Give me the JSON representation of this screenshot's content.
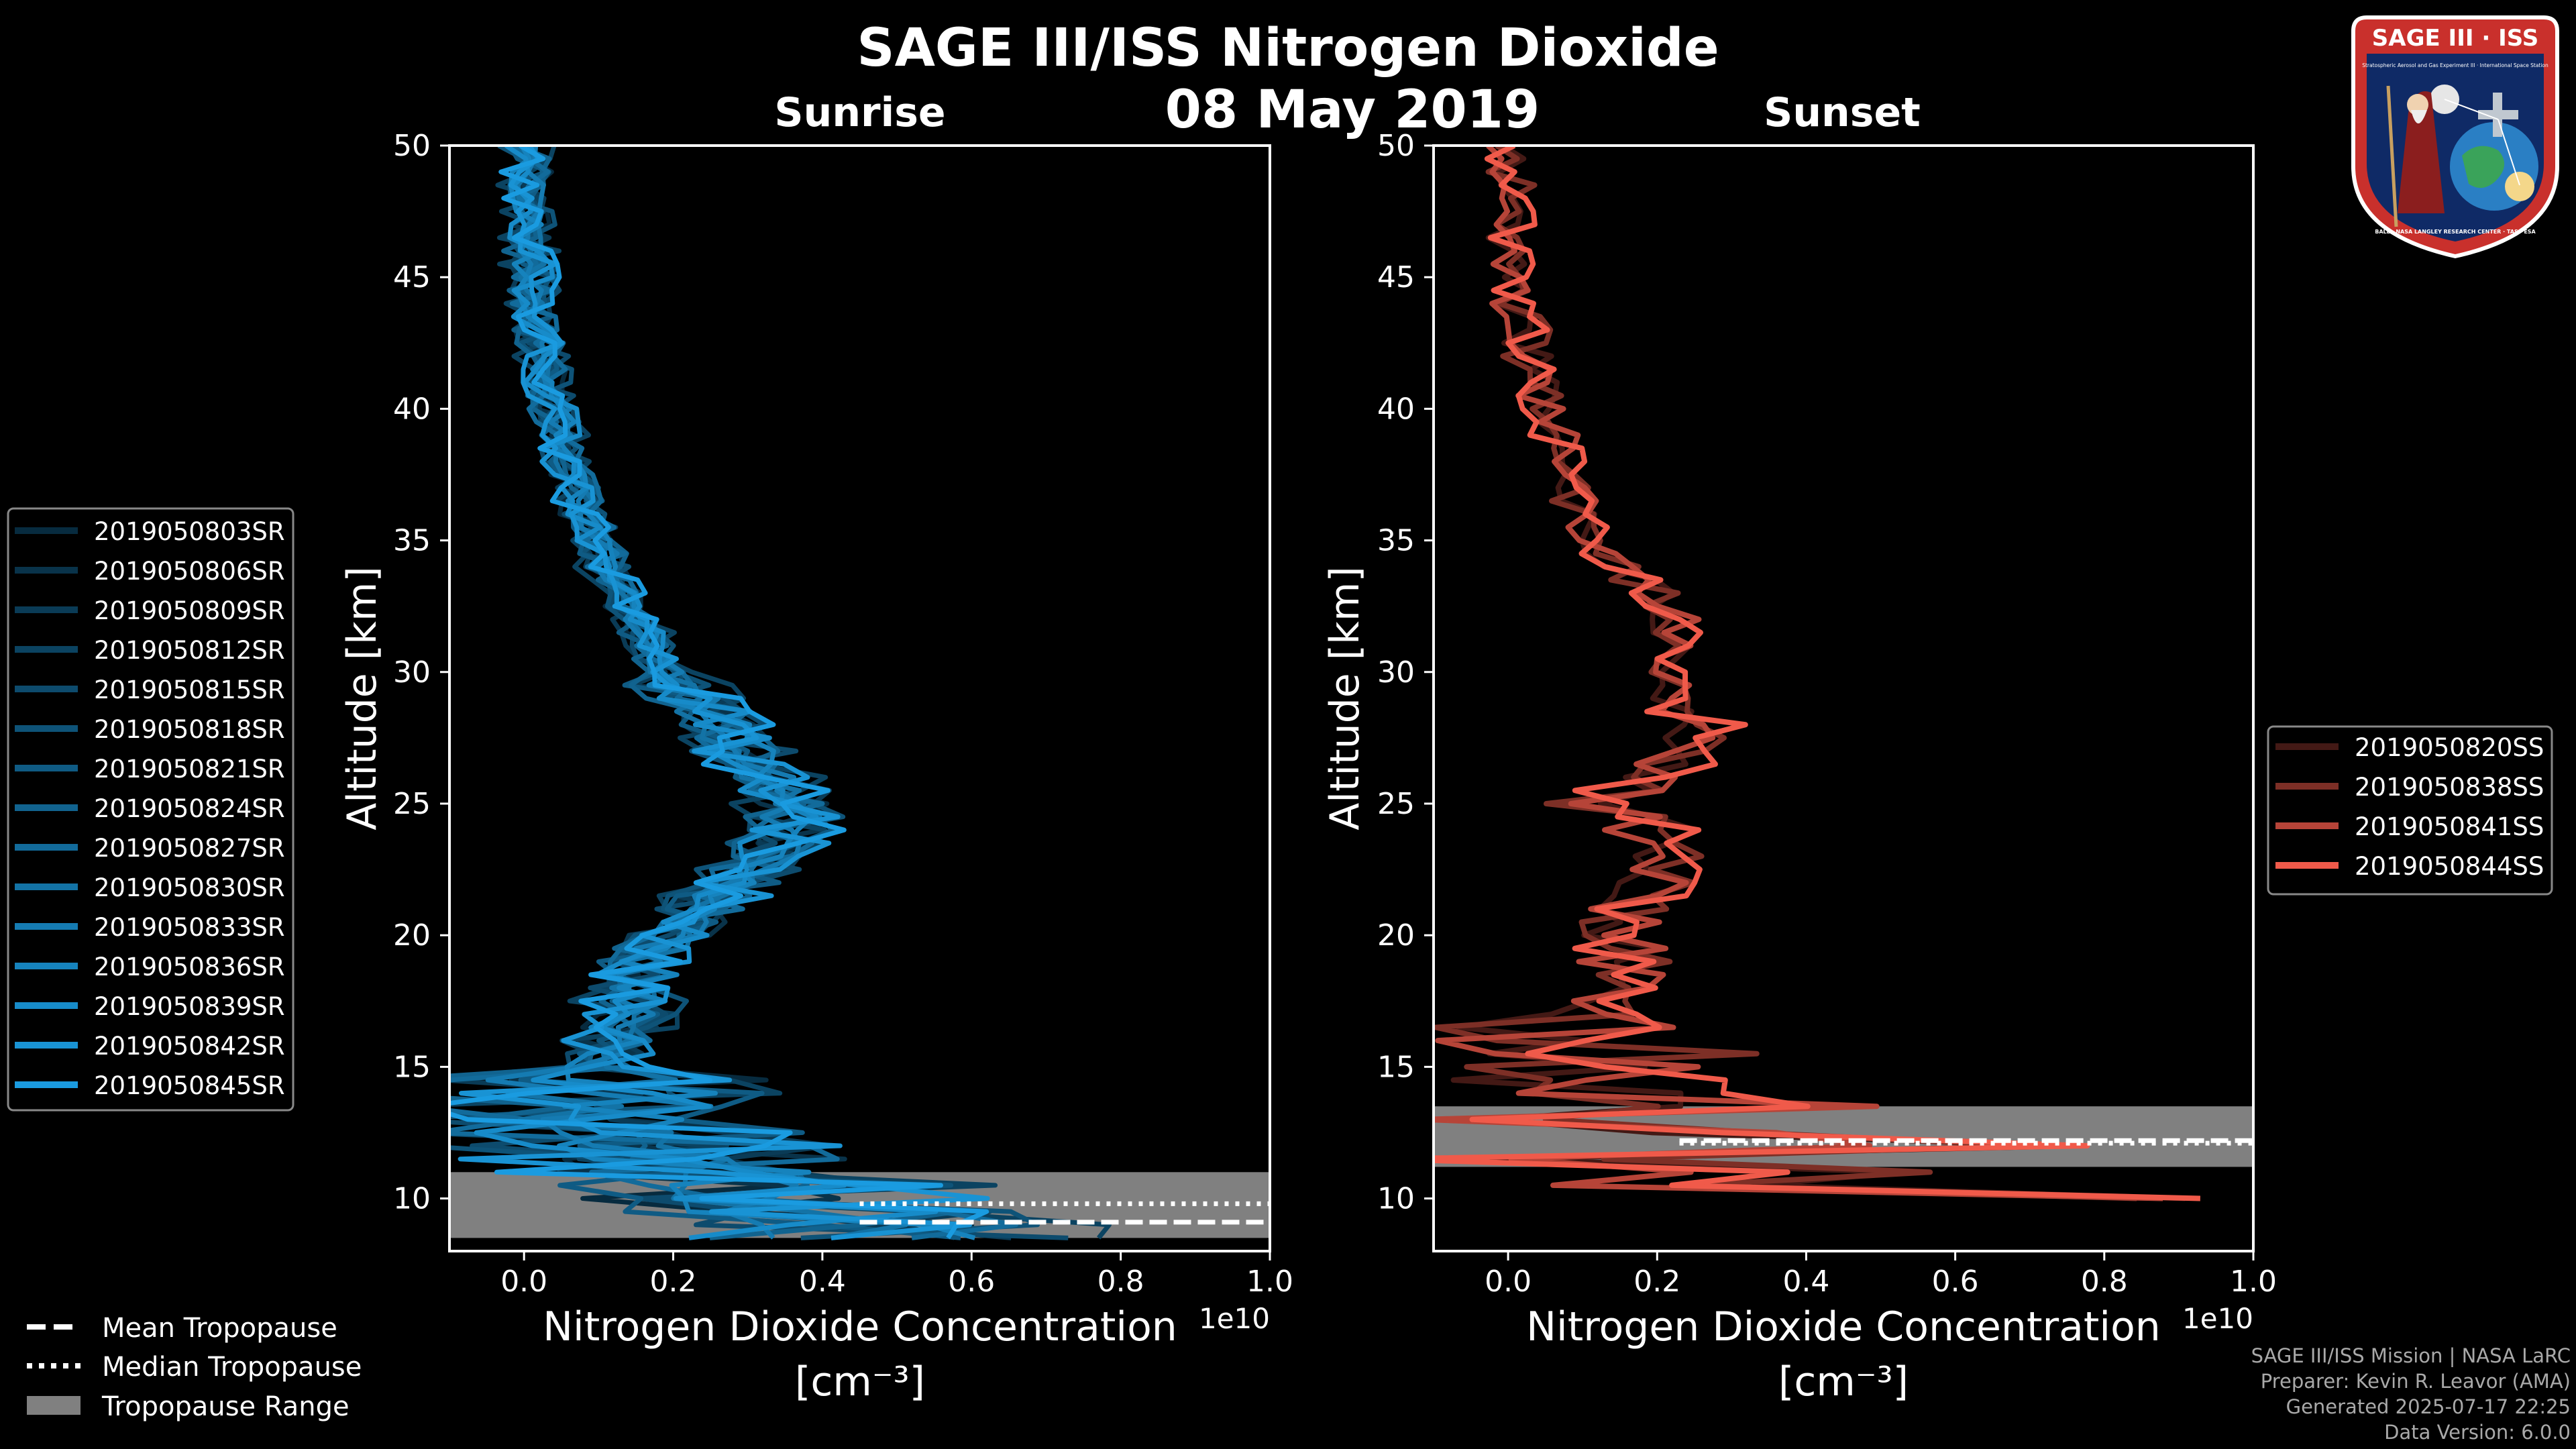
{
  "title": "SAGE III/ISS Nitrogen Dioxide",
  "date": "08 May 2019",
  "logo_text": {
    "name": "SAGE III · ISS",
    "ring": "BALL · NASA LANGLEY RESEARCH CENTER · TAS · ESA",
    "sub": "Stratospheric Aerosol and Gas Experiment III · International Space Station"
  },
  "credits": {
    "line1": "SAGE III/ISS Mission | NASA LaRC",
    "line2": "Preparer: Kevin R. Leavor (AMA)",
    "line3": "Generated 2025-07-17 22:25",
    "line4": "Data Version: 6.0.0"
  },
  "tropo_legend": {
    "mean": "Mean Tropopause",
    "median": "Median Tropopause",
    "range": "Tropopause Range"
  },
  "colors": {
    "background": "#000000",
    "sunrise_base": "#1a9be0",
    "sunset_base": "#f05a4a",
    "tropo_band": "#808080"
  },
  "chart_data": [
    {
      "type": "line",
      "panel": "sunrise",
      "title": "Sunrise",
      "xlabel": "Nitrogen Dioxide Concentration",
      "xlabel_units": "[cm$^{-3}$]",
      "xlabel_units_display": "[cm⁻³]",
      "ylabel": "Altitude [km]",
      "xlim": [
        -0.1,
        1.0
      ],
      "ylim": [
        8,
        50
      ],
      "x_scale_label": "1e10",
      "xticks": [
        "0.0",
        "0.2",
        "0.4",
        "0.6",
        "0.8",
        "1.0"
      ],
      "yticks": [
        "10",
        "15",
        "20",
        "25",
        "30",
        "35",
        "40",
        "45",
        "50"
      ],
      "legend": [
        "2019050803SR",
        "2019050806SR",
        "2019050809SR",
        "2019050812SR",
        "2019050815SR",
        "2019050818SR",
        "2019050821SR",
        "2019050824SR",
        "2019050827SR",
        "2019050830SR",
        "2019050833SR",
        "2019050836SR",
        "2019050839SR",
        "2019050842SR",
        "2019050845SR"
      ],
      "mean_profile": {
        "altitude_km": [
          9,
          10,
          11,
          12,
          13,
          14,
          15,
          16,
          17,
          18,
          19,
          20,
          21,
          22,
          23,
          24,
          25,
          26,
          27,
          28,
          29,
          30,
          31,
          32,
          33,
          34,
          35,
          36,
          37,
          38,
          39,
          40,
          41,
          42,
          43,
          44,
          45,
          46,
          47,
          48,
          49,
          50
        ],
        "no2_1e10": [
          0.45,
          0.35,
          0.25,
          0.15,
          0.1,
          0.08,
          0.1,
          0.12,
          0.14,
          0.15,
          0.17,
          0.2,
          0.24,
          0.28,
          0.33,
          0.36,
          0.36,
          0.33,
          0.3,
          0.26,
          0.22,
          0.19,
          0.17,
          0.15,
          0.13,
          0.11,
          0.1,
          0.08,
          0.07,
          0.06,
          0.05,
          0.04,
          0.03,
          0.025,
          0.02,
          0.015,
          0.01,
          0.008,
          0.006,
          0.005,
          0.004,
          0.003
        ]
      },
      "tropopause": {
        "mean_km": 9.1,
        "median_km": 9.8,
        "range_km": [
          8.5,
          11.0
        ],
        "line_x_start": 0.45
      }
    },
    {
      "type": "line",
      "panel": "sunset",
      "title": "Sunset",
      "xlabel": "Nitrogen Dioxide Concentration",
      "xlabel_units": "[cm$^{-3}$]",
      "xlabel_units_display": "[cm⁻³]",
      "ylabel": "Altitude [km]",
      "xlim": [
        -0.1,
        1.0
      ],
      "ylim": [
        8,
        50
      ],
      "x_scale_label": "1e10",
      "xticks": [
        "0.0",
        "0.2",
        "0.4",
        "0.6",
        "0.8",
        "1.0"
      ],
      "yticks": [
        "10",
        "15",
        "20",
        "25",
        "30",
        "35",
        "40",
        "45",
        "50"
      ],
      "legend": [
        "2019050820SS",
        "2019050838SS",
        "2019050841SS",
        "2019050844SS"
      ],
      "mean_profile": {
        "altitude_km": [
          10,
          10.5,
          11,
          11.5,
          12,
          12.5,
          13,
          13.5,
          14,
          15,
          16,
          17,
          18,
          19,
          20,
          21,
          22,
          23,
          24,
          25,
          26,
          27,
          28,
          29,
          30,
          31,
          32,
          33,
          34,
          35,
          36,
          37,
          38,
          39,
          40,
          41,
          42,
          43,
          44,
          45,
          46,
          47,
          48,
          49,
          50
        ],
        "no2_1e10": [
          0.82,
          0.15,
          0.4,
          0.05,
          0.6,
          0.15,
          0.05,
          0.3,
          0.08,
          0.12,
          0.1,
          0.12,
          0.14,
          0.16,
          0.15,
          0.18,
          0.2,
          0.23,
          0.2,
          0.1,
          0.18,
          0.27,
          0.26,
          0.25,
          0.22,
          0.23,
          0.22,
          0.2,
          0.15,
          0.12,
          0.1,
          0.08,
          0.07,
          0.06,
          0.05,
          0.04,
          0.03,
          0.02,
          0.01,
          0.005,
          0.0,
          0.0,
          -0.005,
          0.0,
          0.0
        ]
      },
      "tropopause": {
        "mean_km": 12.2,
        "median_km": 12.1,
        "range_km": [
          11.2,
          13.5
        ],
        "line_x_start": 0.23
      }
    }
  ]
}
